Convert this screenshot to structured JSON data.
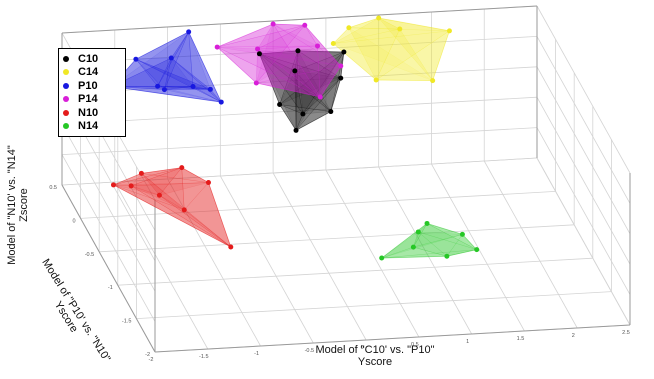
{
  "chart_data": {
    "type": "scatter",
    "dimensions": 3,
    "xlabel": [
      "Model of  \"C10' vs. \"P10\"",
      "Yscore"
    ],
    "ylabel": [
      "Model of  \"P10' vs. \"N10\"",
      "Yscore"
    ],
    "zlabel": [
      "Model of  \"N10' vs. \"N14\"",
      "Zscore"
    ],
    "xticks": [
      "-2",
      "-1.5",
      "-1",
      "-0.5",
      "0",
      "0.5",
      "1",
      "1.5",
      "2",
      "2.5"
    ],
    "yticks": [
      "-2",
      "-1.5",
      "-1",
      "-0.5",
      "0",
      "0.5"
    ],
    "xlim": [
      -2,
      2.5
    ],
    "ylim": [
      -2,
      0.5
    ],
    "zlim": [
      -2,
      3
    ],
    "grid": true,
    "legend_position": "top-left",
    "series": [
      {
        "name": "C10",
        "color": "#000000",
        "points": [
          [
            -0.15,
            -0.1,
            1.6
          ],
          [
            -0.2,
            0.3,
            2.4
          ],
          [
            0.2,
            0.4,
            2.2
          ],
          [
            0.5,
            0.1,
            1.9
          ],
          [
            -0.1,
            -0.4,
            1.4
          ],
          [
            0.3,
            -0.2,
            1.5
          ],
          [
            0.1,
            0.2,
            2.0
          ],
          [
            0.6,
            0.3,
            2.3
          ],
          [
            0.0,
            -0.3,
            1.7
          ]
        ]
      },
      {
        "name": "C14",
        "color": "#f0e826",
        "points": [
          [
            0.5,
            0.3,
            2.6
          ],
          [
            1.0,
            0.5,
            2.9
          ],
          [
            1.6,
            0.3,
            2.8
          ],
          [
            1.3,
            -0.1,
            2.1
          ],
          [
            0.8,
            0.0,
            2.0
          ],
          [
            1.2,
            0.5,
            2.5
          ],
          [
            0.7,
            0.45,
            2.75
          ]
        ]
      },
      {
        "name": "P10",
        "color": "#1818e0",
        "points": [
          [
            -1.6,
            0.3,
            1.6
          ],
          [
            -1.3,
            0.5,
            2.0
          ],
          [
            -1.1,
            0.3,
            1.4
          ],
          [
            -0.8,
            0.5,
            2.8
          ],
          [
            -0.9,
            0.1,
            1.9
          ],
          [
            -1.2,
            0.2,
            1.75
          ],
          [
            -0.7,
            0.2,
            1.55
          ],
          [
            -1.0,
            0.4,
            2.2
          ],
          [
            -0.65,
            0.05,
            1.45
          ]
        ]
      },
      {
        "name": "P14",
        "color": "#d81fd8",
        "points": [
          [
            -0.6,
            0.3,
            2.7
          ],
          [
            0.0,
            0.5,
            2.9
          ],
          [
            0.3,
            0.5,
            2.8
          ],
          [
            0.5,
            0.1,
            2.3
          ],
          [
            -0.3,
            0.1,
            1.9
          ],
          [
            0.2,
            -0.2,
            2.0
          ],
          [
            -0.2,
            0.35,
            2.45
          ],
          [
            0.35,
            0.3,
            2.55
          ]
        ]
      },
      {
        "name": "N10",
        "color": "#e41b1b",
        "points": [
          [
            -1.9,
            -0.6,
            0.4
          ],
          [
            -1.6,
            -0.5,
            0.5
          ],
          [
            -1.2,
            -0.45,
            0.5
          ],
          [
            -1.0,
            -0.6,
            0.3
          ],
          [
            -1.3,
            -0.8,
            -0.1
          ],
          [
            -1.0,
            -1.2,
            -0.5
          ],
          [
            -1.5,
            -0.7,
            0.2
          ],
          [
            -1.75,
            -0.65,
            0.45
          ]
        ]
      },
      {
        "name": "N14",
        "color": "#26c726",
        "points": [
          [
            0.5,
            -1.0,
            -1.6
          ],
          [
            0.8,
            -1.0,
            -1.3
          ],
          [
            1.0,
            -0.8,
            -1.0
          ],
          [
            1.3,
            -0.9,
            -1.2
          ],
          [
            1.4,
            -1.0,
            -1.5
          ],
          [
            1.1,
            -1.05,
            -1.55
          ],
          [
            0.9,
            -0.85,
            -1.15
          ]
        ]
      }
    ]
  },
  "legend": {
    "items": [
      {
        "label": "C10",
        "color": "#000000"
      },
      {
        "label": "C14",
        "color": "#f0e826"
      },
      {
        "label": "P10",
        "color": "#1818e0"
      },
      {
        "label": "P14",
        "color": "#d81fd8"
      },
      {
        "label": "N10",
        "color": "#e41b1b"
      },
      {
        "label": "N14",
        "color": "#26c726"
      }
    ]
  }
}
